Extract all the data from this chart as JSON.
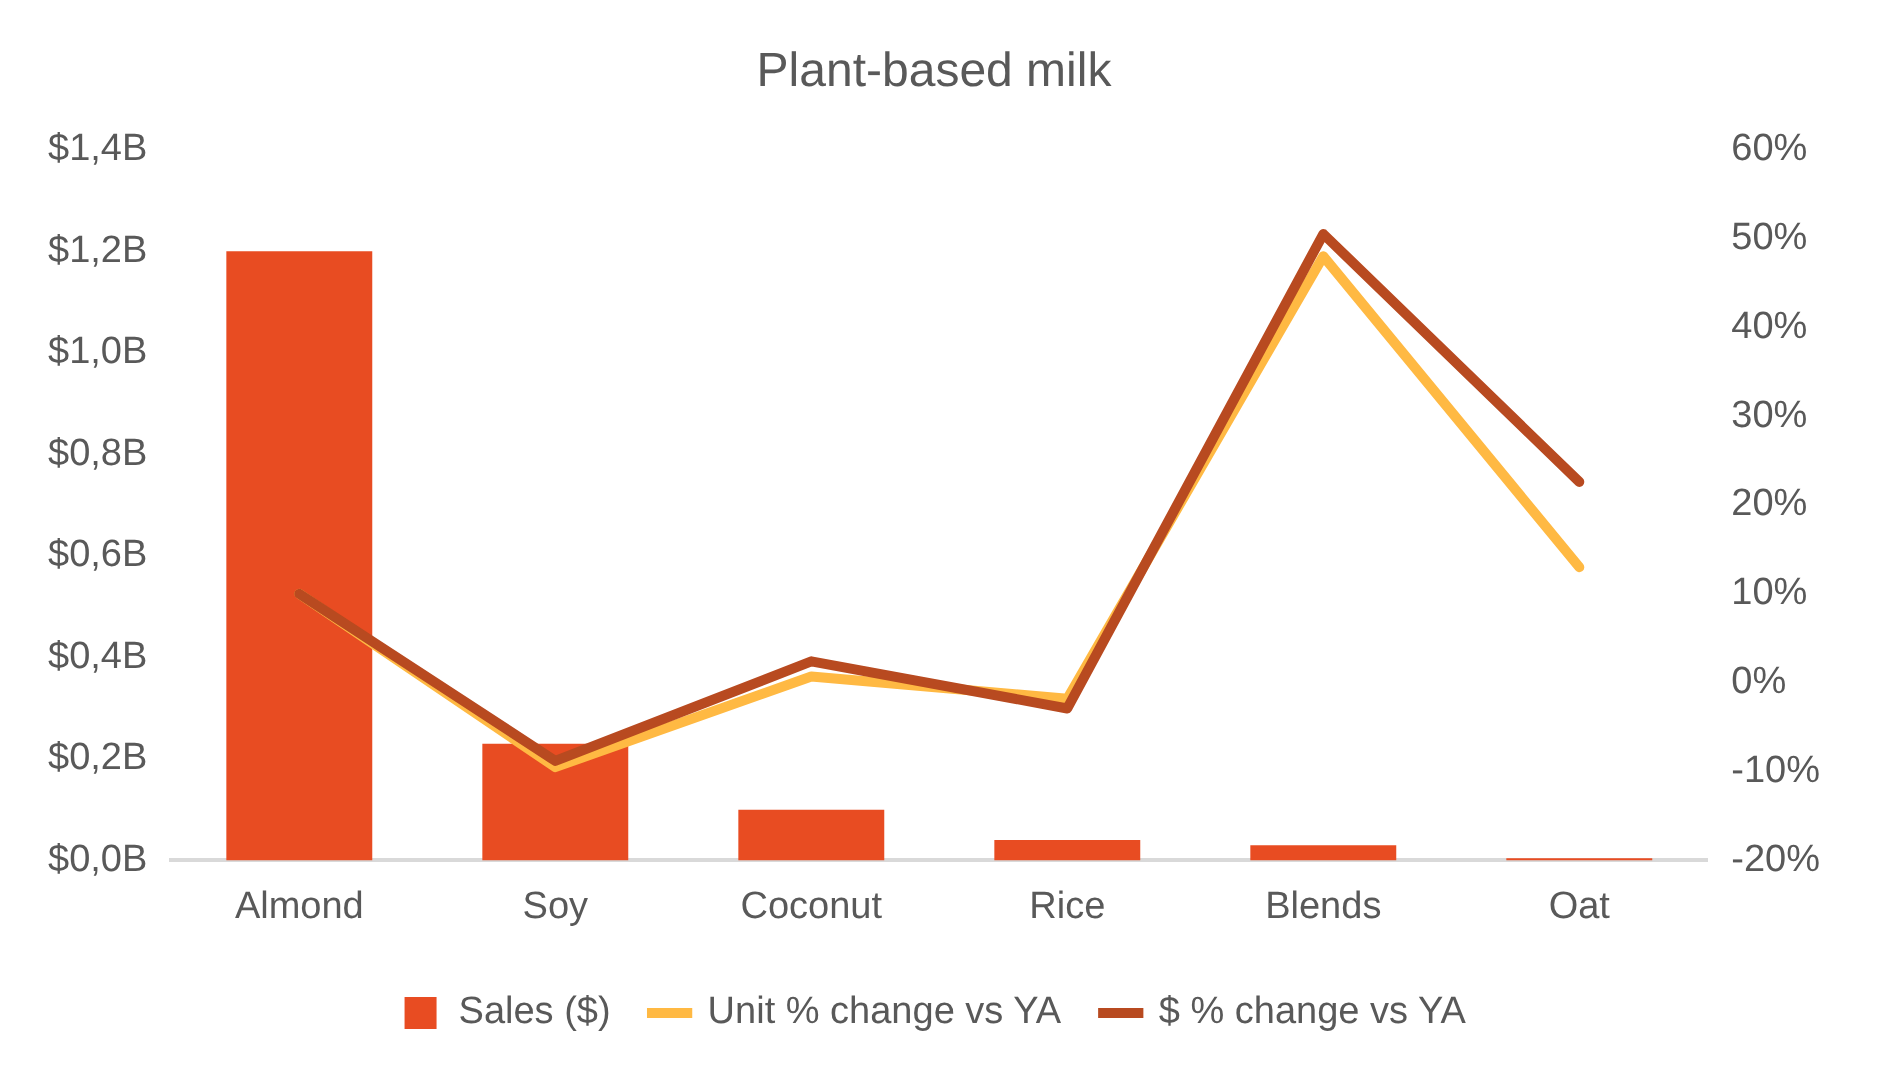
{
  "chart_data": {
    "type": "bar",
    "title": "Plant-based milk",
    "categories": [
      "Almond",
      "Soy",
      "Coconut",
      "Rice",
      "Blends",
      "Oat"
    ],
    "series": [
      {
        "name": "Sales ($)",
        "color": "#e84c22",
        "values": [
          1.2,
          0.23,
          0.1,
          0.04,
          0.03,
          0.004
        ]
      },
      {
        "name": "Unit % change vs YA",
        "type": "line",
        "axis": "y2",
        "color": "#ffb943",
        "values": [
          10,
          -9.5,
          0.7,
          -1.8,
          48,
          13
        ]
      },
      {
        "name": "$ % change vs YA",
        "type": "line",
        "axis": "y2",
        "color": "#b84a20",
        "values": [
          10,
          -8.8,
          2.4,
          -2.9,
          50.5,
          22.6
        ]
      }
    ],
    "ylim": [
      0,
      1.4
    ],
    "yticks": [
      {
        "value": 0,
        "label": "$0,0B"
      },
      {
        "value": 0.2,
        "label": "$0,2B"
      },
      {
        "value": 0.4,
        "label": "$0,4B"
      },
      {
        "value": 0.6,
        "label": "$0,6B"
      },
      {
        "value": 0.8,
        "label": "$0,8B"
      },
      {
        "value": 1,
        "label": "$1,0B"
      },
      {
        "value": 1.2,
        "label": "$1,2B"
      },
      {
        "value": 1.4,
        "label": "$1,4B"
      }
    ],
    "y2lim": [
      -20,
      60
    ],
    "y2ticks": [
      {
        "value": -20,
        "label": "-20%"
      },
      {
        "value": -10,
        "label": "-10%"
      },
      {
        "value": 0,
        "label": "0%"
      },
      {
        "value": 10,
        "label": "10%"
      },
      {
        "value": 20,
        "label": "20%"
      },
      {
        "value": 30,
        "label": "30%"
      },
      {
        "value": 40,
        "label": "40%"
      },
      {
        "value": 50,
        "label": "50%"
      },
      {
        "value": 60,
        "label": "60%"
      }
    ],
    "grid": false,
    "legend": "bottom",
    "marker": "none",
    "line_style": "solid"
  }
}
